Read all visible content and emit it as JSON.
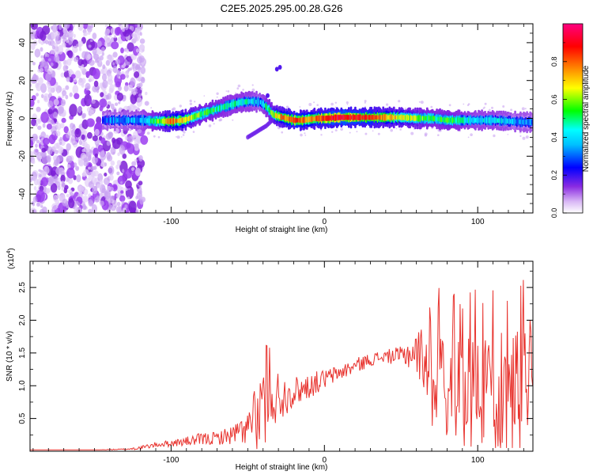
{
  "title": "C2E5.2025.295.00.28.G26",
  "chart_data": [
    {
      "type": "heatmap",
      "title": "C2E5.2025.295.00.28.G26",
      "xlabel": "Height of straight line (km)",
      "ylabel": "Frequency (Hz)",
      "xlim": [
        -192,
        136
      ],
      "ylim": [
        -50,
        50
      ],
      "xticks": [
        -100,
        0,
        100
      ],
      "xtick_labels": [
        "-100",
        "0",
        "100"
      ],
      "yticks": [
        -40,
        -20,
        0,
        20,
        40
      ],
      "ytick_labels": [
        "-40",
        "-20",
        "0",
        "20",
        "40"
      ],
      "colorbar": {
        "label": "Normalized spectral amplitude",
        "range": [
          0.0,
          1.0
        ],
        "ticks": [
          0.0,
          0.2,
          0.4,
          0.6,
          0.8
        ],
        "tick_labels": [
          "0.0",
          "0.2",
          "0.4",
          "0.6",
          "0.8"
        ],
        "colors": [
          "#ffffff",
          "#8a2be2",
          "#0000ff",
          "#00ffff",
          "#00ff00",
          "#ffff00",
          "#ff8c00",
          "#ff0000",
          "#ff0080"
        ]
      },
      "noise_region_x": [
        -192,
        -118
      ],
      "ridge": {
        "x": [
          -142,
          -130,
          -120,
          -110,
          -100,
          -92,
          -85,
          -78,
          -70,
          -62,
          -55,
          -48,
          -42,
          -38,
          -34,
          -30,
          -25,
          -20,
          -15,
          -10,
          -5,
          0,
          10,
          20,
          30,
          40,
          50,
          60,
          70,
          80,
          90,
          100,
          110,
          120,
          130,
          136
        ],
        "y": [
          -1,
          -1,
          -1,
          -1.5,
          -1.5,
          -1,
          1,
          3,
          5,
          7,
          8.5,
          9,
          8.5,
          6,
          2,
          1,
          0,
          -1,
          -1,
          -0.5,
          0,
          0,
          0.5,
          0.5,
          0.5,
          0.5,
          0.5,
          0,
          0,
          -1,
          -1,
          -1,
          -1,
          -1.5,
          -2,
          -2
        ],
        "amplitude": [
          0.25,
          0.3,
          0.35,
          0.55,
          0.85,
          0.75,
          0.6,
          0.55,
          0.5,
          0.45,
          0.45,
          0.4,
          0.35,
          0.5,
          0.6,
          0.75,
          0.85,
          0.9,
          0.85,
          0.8,
          0.85,
          0.95,
          1.0,
          0.95,
          0.9,
          0.8,
          0.7,
          0.6,
          0.5,
          0.55,
          0.45,
          0.4,
          0.4,
          0.35,
          0.3,
          0.3
        ]
      },
      "secondary_branch": {
        "x": [
          -50,
          -44,
          -38,
          -34
        ],
        "y": [
          -10,
          -7,
          -4,
          -1
        ]
      }
    },
    {
      "type": "line",
      "xlabel": "Height of straight line (km)",
      "ylabel": "SNR (10 * v/v)",
      "y_scale_label": "(x10",
      "y_scale_exponent": "4",
      "y_scale_close": ")",
      "xlim": [
        -192,
        136
      ],
      "ylim": [
        0,
        2.9
      ],
      "xticks": [
        -100,
        0,
        100
      ],
      "xtick_labels": [
        "-100",
        "0",
        "100"
      ],
      "yticks": [
        0.5,
        1.0,
        1.5,
        2.0,
        2.5
      ],
      "ytick_labels": [
        "0.5",
        "1.0",
        "1.5",
        "2.0",
        "2.5"
      ],
      "color": "#e8332e",
      "envelope": {
        "x": [
          -192,
          -150,
          -130,
          -120,
          -110,
          -100,
          -90,
          -80,
          -70,
          -60,
          -50,
          -45,
          -40,
          -35,
          -30,
          -25,
          -22,
          -20,
          -15,
          -10,
          0,
          10,
          20,
          30,
          40,
          50,
          55,
          60,
          65,
          70,
          75,
          80,
          90,
          100,
          110,
          120,
          130,
          136
        ],
        "mean": [
          0.02,
          0.02,
          0.03,
          0.05,
          0.1,
          0.12,
          0.15,
          0.18,
          0.2,
          0.25,
          0.35,
          0.5,
          0.65,
          0.8,
          0.85,
          0.85,
          0.95,
          0.9,
          0.95,
          1.0,
          1.1,
          1.2,
          1.3,
          1.4,
          1.45,
          1.45,
          1.5,
          1.5,
          1.45,
          1.35,
          1.3,
          1.25,
          1.2,
          1.15,
          1.15,
          1.1,
          1.1,
          1.1
        ],
        "spread": [
          0.0,
          0.0,
          0.01,
          0.03,
          0.04,
          0.05,
          0.07,
          0.1,
          0.1,
          0.15,
          0.25,
          0.5,
          0.6,
          0.5,
          0.4,
          0.3,
          0.3,
          0.25,
          0.2,
          0.2,
          0.15,
          0.12,
          0.12,
          0.1,
          0.1,
          0.15,
          0.25,
          0.35,
          0.5,
          0.7,
          0.7,
          0.75,
          0.8,
          0.8,
          0.85,
          0.85,
          0.9,
          0.9
        ]
      }
    }
  ]
}
